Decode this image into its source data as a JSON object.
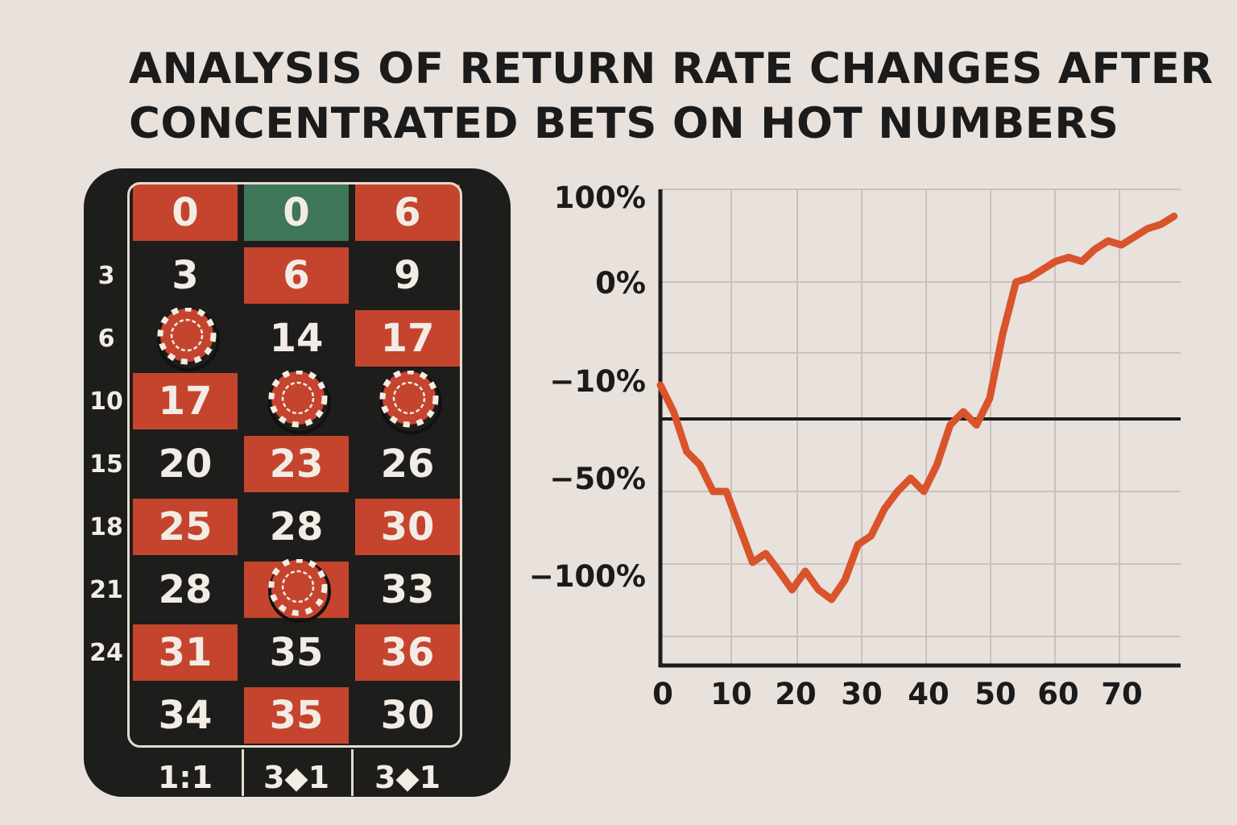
{
  "title_lines": [
    "ANALYSIS OF RETURN RATE CHANGES AFTER",
    "CONCENTRATED BETS ON HOT NUMBERS"
  ],
  "colors": {
    "red": "#c5442e",
    "black": "#1d1d1b",
    "green": "#3f7558",
    "line": "#d9532b"
  },
  "roulette": {
    "rows": [
      [
        {
          "v": "0",
          "c": "red"
        },
        {
          "v": "0",
          "c": "green"
        },
        {
          "v": "6",
          "c": "red"
        }
      ],
      [
        {
          "v": "3",
          "c": "black"
        },
        {
          "v": "6",
          "c": "red"
        },
        {
          "v": "9",
          "c": "black"
        }
      ],
      [
        {
          "v": "",
          "c": "black",
          "chip": true
        },
        {
          "v": "14",
          "c": "black"
        },
        {
          "v": "17",
          "c": "red"
        }
      ],
      [
        {
          "v": "17",
          "c": "red"
        },
        {
          "v": "",
          "c": "black",
          "chip": true
        },
        {
          "v": "",
          "c": "black",
          "chip": true
        }
      ],
      [
        {
          "v": "20",
          "c": "black"
        },
        {
          "v": "23",
          "c": "red"
        },
        {
          "v": "26",
          "c": "black"
        }
      ],
      [
        {
          "v": "25",
          "c": "red"
        },
        {
          "v": "28",
          "c": "black"
        },
        {
          "v": "30",
          "c": "red"
        }
      ],
      [
        {
          "v": "28",
          "c": "black"
        },
        {
          "v": "",
          "c": "red",
          "chip": true
        },
        {
          "v": "33",
          "c": "black"
        }
      ],
      [
        {
          "v": "31",
          "c": "red"
        },
        {
          "v": "35",
          "c": "black"
        },
        {
          "v": "36",
          "c": "red"
        }
      ],
      [
        {
          "v": "34",
          "c": "black"
        },
        {
          "v": "35",
          "c": "red"
        },
        {
          "v": "30",
          "c": "black"
        }
      ]
    ],
    "row_labels": [
      "3",
      "6",
      "10",
      "15",
      "18",
      "21",
      "24"
    ],
    "footer": [
      "1:1",
      "3◆1",
      "3◆1"
    ]
  },
  "chart_data": {
    "type": "line",
    "title": "",
    "xlabel": "",
    "ylabel": "",
    "x_ticks": [
      "0",
      "10",
      "20",
      "30",
      "40",
      "50",
      "60",
      "70"
    ],
    "y_ticks": [
      "100%",
      "0%",
      "−10%",
      "−50%",
      "−100%"
    ],
    "reference_line_y": -25,
    "series": [
      {
        "x": [
          0,
          2,
          4,
          6,
          8,
          10,
          12,
          14,
          16,
          18,
          20,
          22,
          24,
          26,
          28,
          30,
          32,
          34,
          36,
          38,
          40,
          42,
          44,
          46,
          48,
          50,
          52,
          54,
          56,
          58,
          60,
          62,
          64,
          66,
          68,
          70,
          72,
          74,
          76,
          78
        ],
        "y": [
          -10,
          -20,
          -35,
          -40,
          -50,
          -50,
          -70,
          -90,
          -85,
          -95,
          -110,
          -95,
          -110,
          -120,
          -100,
          -80,
          -75,
          -60,
          -50,
          -45,
          -50,
          -40,
          -25,
          -20,
          -25,
          -15,
          -5,
          0,
          5,
          15,
          25,
          30,
          25,
          40,
          50,
          45,
          55,
          65,
          70,
          80
        ]
      }
    ]
  }
}
